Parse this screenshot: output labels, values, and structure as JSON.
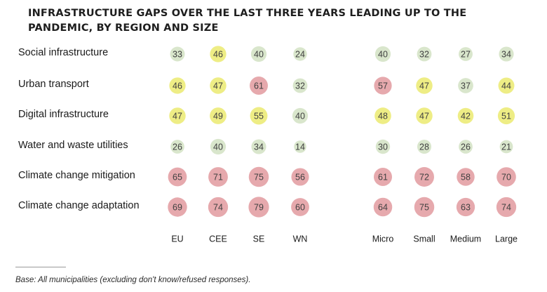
{
  "title": "INFRASTRUCTURE GAPS OVER THE LAST THREE YEARS LEADING UP TO THE PANDEMIC, BY REGION AND SIZE",
  "footnote": "Base: All municipalities (excluding don't know/refused responses).",
  "colors": {
    "low": "#d9e6cc",
    "mid": "#eeed85",
    "high": "#e6a9ad"
  },
  "chart_data": {
    "type": "table",
    "rows": [
      "Social infrastructure",
      "Urban transport",
      "Digital infrastructure",
      "Water and waste utilities",
      "Climate change mitigation",
      "Climate change adaptation"
    ],
    "groups": [
      {
        "columns": [
          "EU",
          "CEE",
          "SE",
          "WN"
        ],
        "values": [
          [
            33,
            46,
            40,
            24
          ],
          [
            46,
            47,
            61,
            32
          ],
          [
            47,
            49,
            55,
            40
          ],
          [
            26,
            40,
            34,
            14
          ],
          [
            65,
            71,
            75,
            56
          ],
          [
            69,
            74,
            79,
            60
          ]
        ]
      },
      {
        "columns": [
          "Micro",
          "Small",
          "Medium",
          "Large"
        ],
        "values": [
          [
            40,
            32,
            27,
            34
          ],
          [
            57,
            47,
            37,
            44
          ],
          [
            48,
            47,
            42,
            51
          ],
          [
            30,
            28,
            26,
            21
          ],
          [
            61,
            72,
            58,
            70
          ],
          [
            64,
            75,
            63,
            74
          ]
        ]
      }
    ],
    "unit": "%"
  }
}
